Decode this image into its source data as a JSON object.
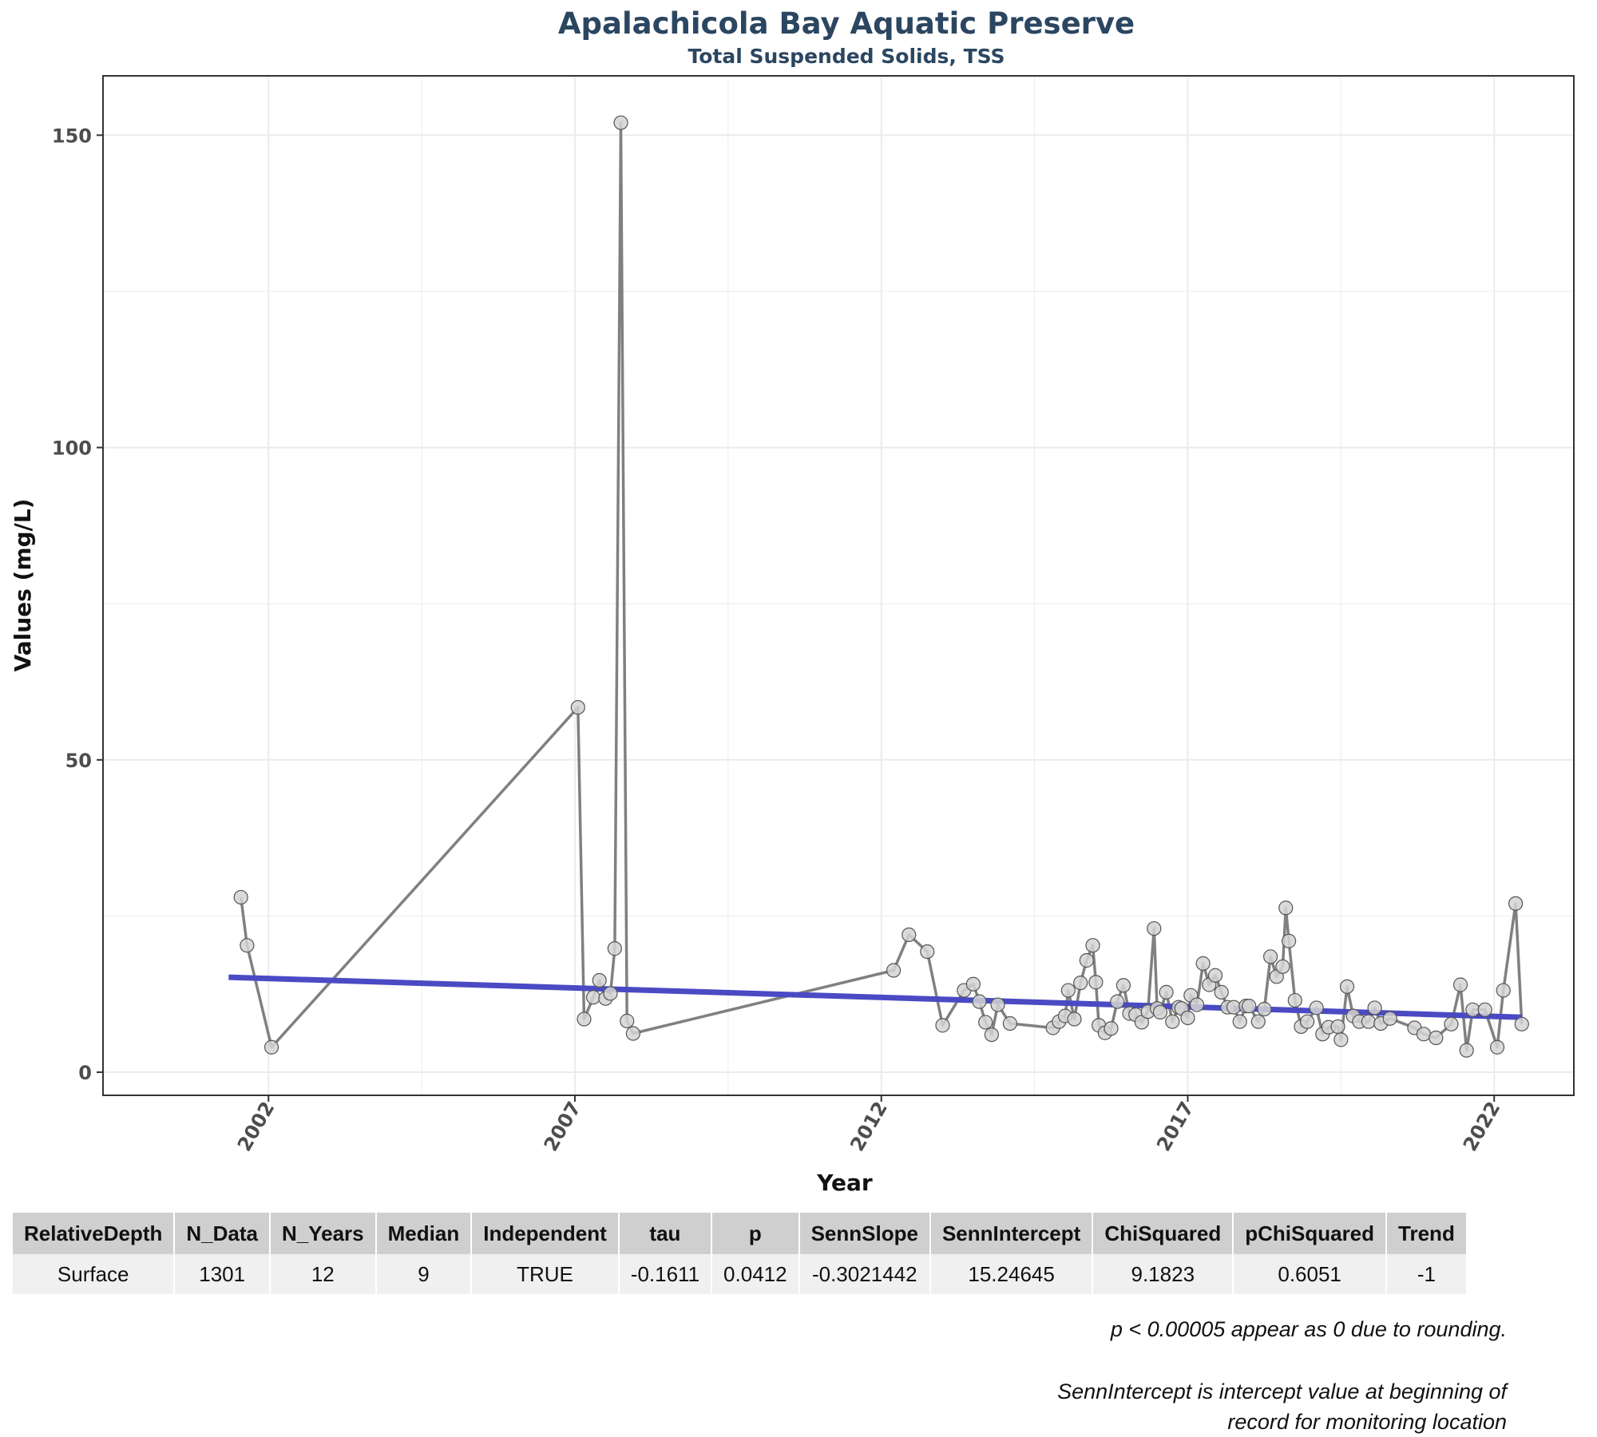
{
  "header": {
    "title": "Apalachicola Bay Aquatic Preserve",
    "subtitle": "Total Suspended Solids, TSS"
  },
  "chart_data": {
    "type": "line",
    "title": "Apalachicola Bay Aquatic Preserve",
    "subtitle": "Total Suspended Solids, TSS",
    "xlabel": "Year",
    "ylabel": "Values (mg/L)",
    "xlim": [
      1999.3,
      2023.3
    ],
    "ylim": [
      -3.7,
      159.5
    ],
    "xticks": [
      2002,
      2007,
      2012,
      2017,
      2022
    ],
    "yticks": [
      0,
      50,
      100,
      150
    ],
    "grid": true,
    "legend": "none",
    "colors": {
      "series": "#808080",
      "point_fill": "#d3d3d3",
      "point_stroke": "#555555",
      "trend": "#4a4ac4",
      "grid": "#ebebeb",
      "panel_border": "#333333"
    },
    "series": [
      {
        "x": [
          2001.55,
          2001.65,
          2002.05,
          2007.05,
          2007.15,
          2007.3,
          2007.4,
          2007.5,
          2007.58,
          2007.65,
          2007.75,
          2007.85,
          2007.95,
          2012.2,
          2012.45,
          2012.75,
          2013.0,
          2013.35,
          2013.5,
          2013.6,
          2013.7,
          2013.8,
          2013.9,
          2014.1,
          2014.8,
          2014.9,
          2015.0,
          2015.05,
          2015.15,
          2015.25,
          2015.35,
          2015.45,
          2015.5,
          2015.55,
          2015.65,
          2015.75,
          2015.85,
          2015.95,
          2016.05,
          2016.15,
          2016.25,
          2016.35,
          2016.45,
          2016.5,
          2016.55,
          2016.65,
          2016.75,
          2016.85,
          2016.9,
          2017.0,
          2017.05,
          2017.15,
          2017.25,
          2017.35,
          2017.45,
          2017.55,
          2017.65,
          2017.75,
          2017.85,
          2017.95,
          2018.0,
          2018.15,
          2018.25,
          2018.35,
          2018.45,
          2018.55,
          2018.6,
          2018.65,
          2018.75,
          2018.85,
          2018.95,
          2019.1,
          2019.2,
          2019.3,
          2019.45,
          2019.5,
          2019.6,
          2019.7,
          2019.8,
          2019.95,
          2020.05,
          2020.15,
          2020.3,
          2020.7,
          2020.85,
          2021.05,
          2021.3,
          2021.45,
          2021.55,
          2021.65,
          2021.85,
          2022.05,
          2022.15,
          2022.35,
          2022.45
        ],
        "y": [
          28,
          20.3,
          4,
          58.4,
          8.5,
          12,
          14.7,
          11.8,
          12.6,
          19.8,
          152,
          8.2,
          6.2,
          16.3,
          22,
          19.3,
          7.5,
          13.1,
          14.1,
          11.3,
          8,
          6,
          10.8,
          7.8,
          7.1,
          8.1,
          9,
          13.1,
          8.5,
          14.3,
          17.9,
          20.3,
          14.4,
          7.5,
          6.3,
          7,
          11.3,
          13.9,
          9.4,
          9.2,
          8,
          9.7,
          23,
          10.2,
          9.6,
          12.8,
          8.1,
          10.4,
          10.2,
          8.7,
          12.3,
          10.8,
          17.4,
          14,
          15.5,
          12.8,
          10.4,
          10.4,
          8.1,
          10.6,
          10.6,
          8.1,
          10.1,
          18.5,
          15.3,
          16.9,
          26.3,
          21,
          11.5,
          7.3,
          8.1,
          10.3,
          6.1,
          7.2,
          7.3,
          5.2,
          13.7,
          9,
          8.1,
          8.1,
          10.3,
          7.8,
          8.6,
          7.1,
          6.1,
          5.5,
          7.7,
          14,
          3.5,
          10,
          10,
          4,
          13.1,
          27,
          7.7
        ]
      }
    ],
    "trend_line": {
      "x": [
        2001.35,
        2022.45
      ],
      "y": [
        15.2,
        8.8
      ]
    }
  },
  "table": {
    "headers": [
      "RelativeDepth",
      "N_Data",
      "N_Years",
      "Median",
      "Independent",
      "tau",
      "p",
      "SennSlope",
      "SennIntercept",
      "ChiSquared",
      "pChiSquared",
      "Trend"
    ],
    "rows": [
      [
        "Surface",
        "1301",
        "12",
        "9",
        "TRUE",
        "-0.1611",
        "0.0412",
        "-0.3021442",
        "15.24645",
        "9.1823",
        "0.6051",
        "-1"
      ]
    ]
  },
  "notes": {
    "rounding": "p < 0.00005 appear as 0 due to rounding.",
    "intercept_line1": "SennIntercept is intercept value at beginning of",
    "intercept_line2": "record for monitoring location"
  }
}
